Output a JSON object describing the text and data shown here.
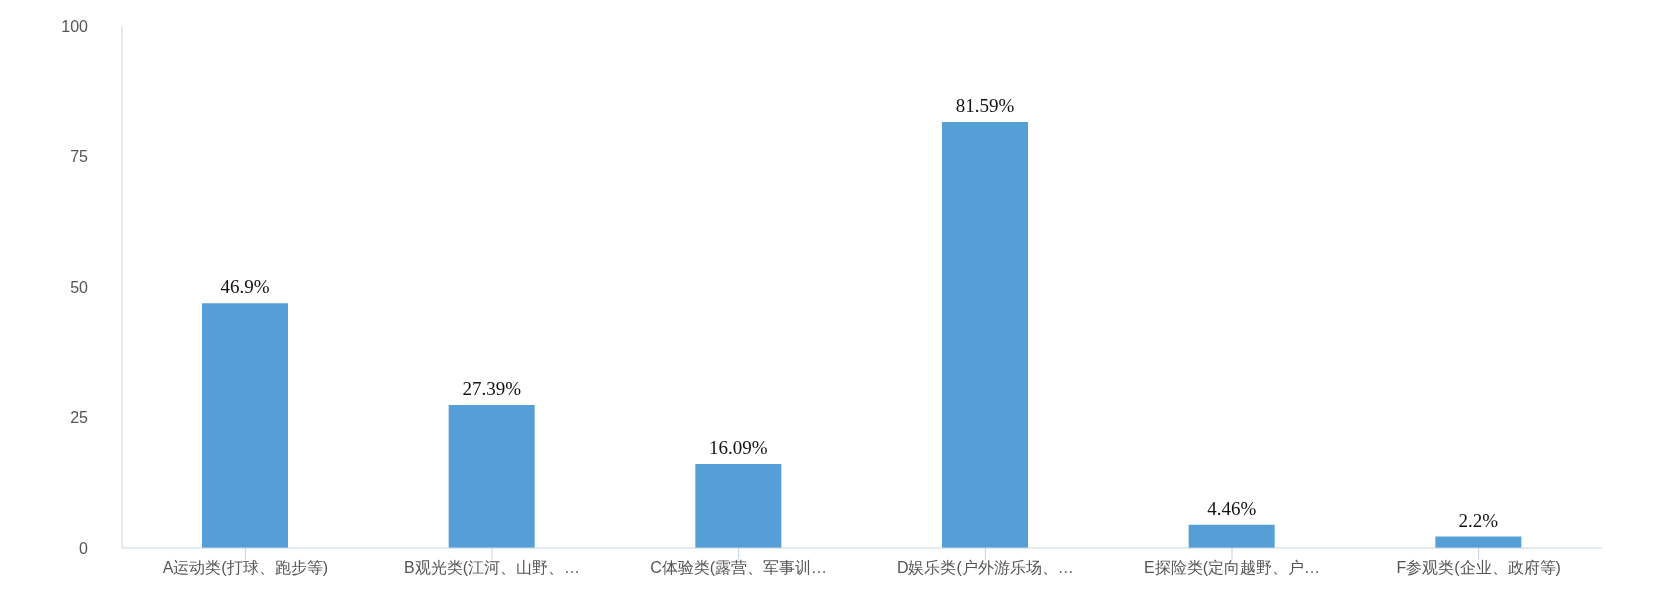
{
  "chart_data": {
    "type": "bar",
    "categories": [
      "A运动类(打球、跑步等)",
      "B观光类(江河、山野、…",
      "C体验类(露营、军事训…",
      "D娱乐类(户外游乐场、…",
      "E探险类(定向越野、户…",
      "F参观类(企业、政府等)"
    ],
    "values": [
      46.9,
      27.39,
      16.09,
      81.59,
      4.46,
      2.2
    ],
    "value_labels": [
      "46.9%",
      "27.39%",
      "16.09%",
      "81.59%",
      "4.46%",
      "2.2%"
    ],
    "color": "#559fd6",
    "ylim": [
      0,
      100
    ],
    "yticks": [
      0,
      25,
      50,
      75,
      100
    ],
    "grid": false,
    "legend": false
  }
}
